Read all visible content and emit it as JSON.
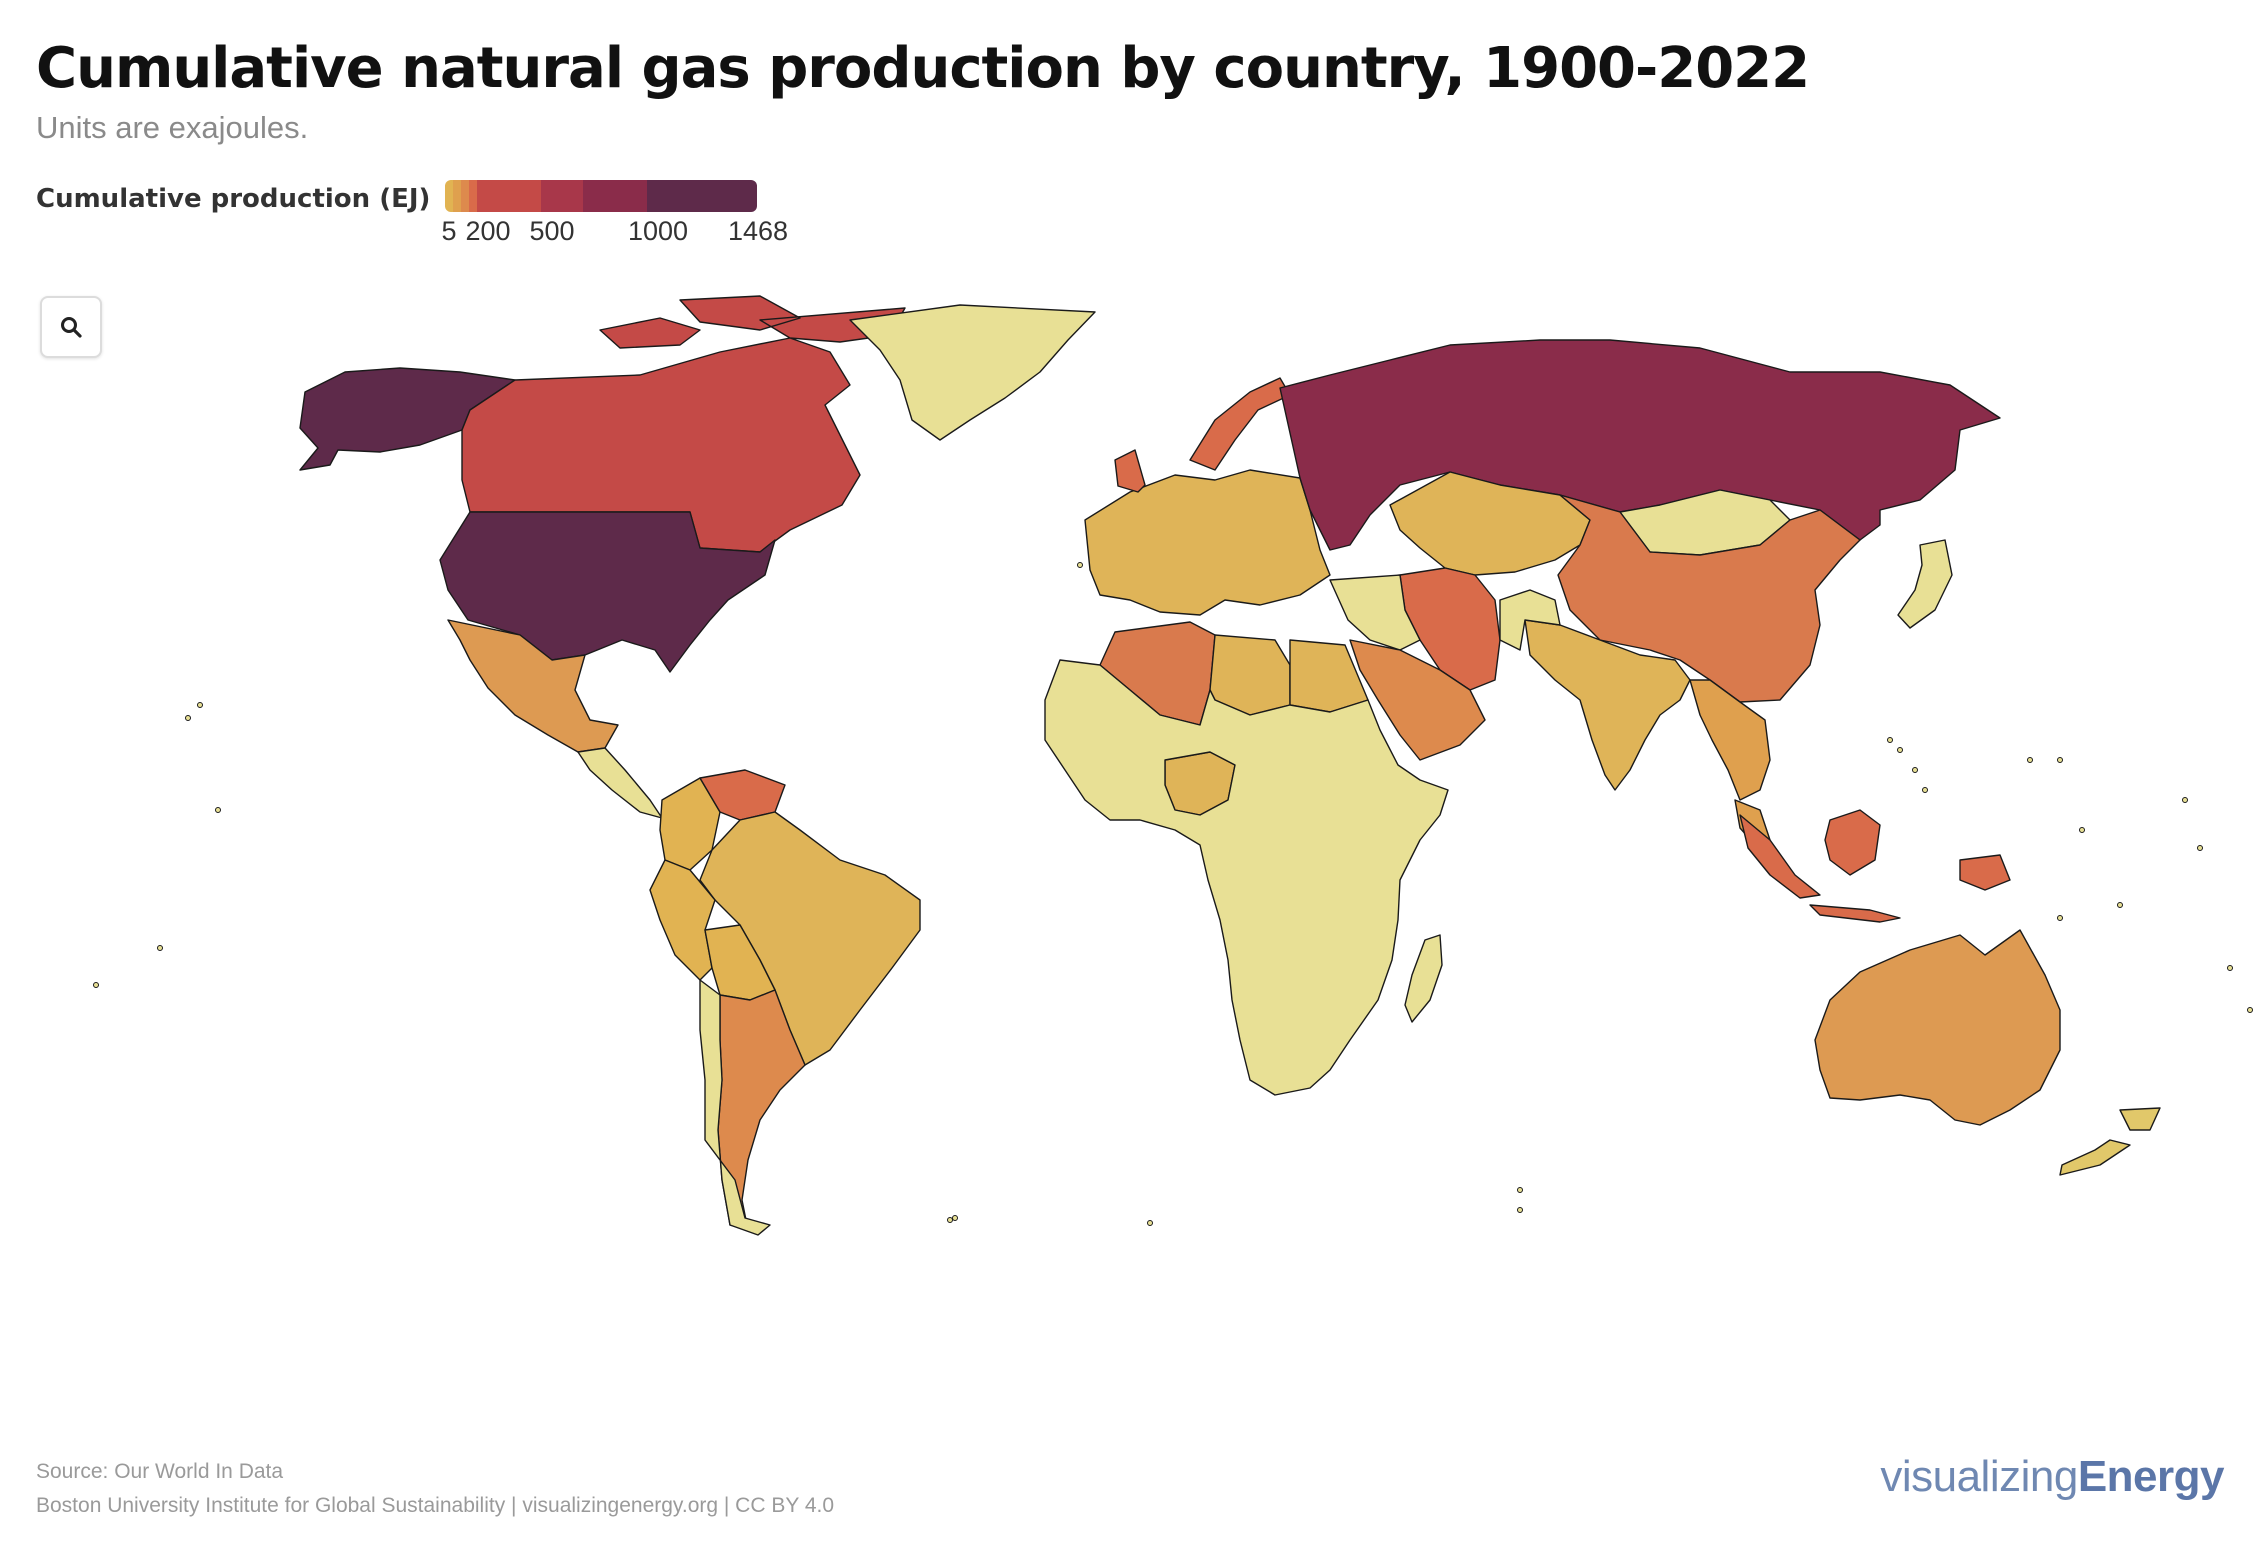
{
  "header": {
    "title": "Cumulative natural gas production by country, 1900-2022",
    "subtitle": "Units are exajoules."
  },
  "legend": {
    "title": "Cumulative production (EJ)",
    "ticks": [
      "5",
      "200",
      "500",
      "1000",
      "1468"
    ],
    "scale": [
      {
        "from": 0,
        "to": 5,
        "color": "#e1b352"
      },
      {
        "from": 5,
        "to": 50,
        "color": "#dfa04e"
      },
      {
        "from": 50,
        "to": 100,
        "color": "#dd8a4d"
      },
      {
        "from": 100,
        "to": 200,
        "color": "#d96b4a"
      },
      {
        "from": 200,
        "to": 500,
        "color": "#c44a47"
      },
      {
        "from": 500,
        "to": 700,
        "color": "#a8374a"
      },
      {
        "from": 700,
        "to": 1000,
        "color": "#8a2c4a"
      },
      {
        "from": 1000,
        "to": 1468,
        "color": "#5e2a4a"
      }
    ],
    "no_data_color": "#e8e095"
  },
  "controls": {
    "zoom_icon": "search-icon"
  },
  "map": {
    "countries": [
      {
        "name": "United States",
        "color": "#5e2a4a"
      },
      {
        "name": "Alaska",
        "color": "#5e2a4a"
      },
      {
        "name": "Canada",
        "color": "#c44a47"
      },
      {
        "name": "Greenland",
        "color": "#e8e095"
      },
      {
        "name": "Mexico",
        "color": "#dd9a52"
      },
      {
        "name": "Central America",
        "color": "#e8e095"
      },
      {
        "name": "Venezuela",
        "color": "#d96b4a"
      },
      {
        "name": "Colombia",
        "color": "#e1b352"
      },
      {
        "name": "Brazil",
        "color": "#dfb458"
      },
      {
        "name": "Peru",
        "color": "#e1b352"
      },
      {
        "name": "Bolivia",
        "color": "#e1b352"
      },
      {
        "name": "Argentina",
        "color": "#dd8a4d"
      },
      {
        "name": "Chile",
        "color": "#e8e095"
      },
      {
        "name": "Europe",
        "color": "#dfb458"
      },
      {
        "name": "United Kingdom",
        "color": "#d96b4a"
      },
      {
        "name": "Norway",
        "color": "#d96b4a"
      },
      {
        "name": "Russia",
        "color": "#8a2c4a"
      },
      {
        "name": "Central Asia",
        "color": "#dfb458"
      },
      {
        "name": "Iran",
        "color": "#d96b4a"
      },
      {
        "name": "Saudi Arabia",
        "color": "#dd8a4d"
      },
      {
        "name": "Middle East",
        "color": "#e8e095"
      },
      {
        "name": "China",
        "color": "#d97a4d"
      },
      {
        "name": "Mongolia",
        "color": "#e8e095"
      },
      {
        "name": "India",
        "color": "#dfb458"
      },
      {
        "name": "Southeast Asia",
        "color": "#dfa04e"
      },
      {
        "name": "Japan",
        "color": "#e8e095"
      },
      {
        "name": "Indonesia",
        "color": "#d96b4a"
      },
      {
        "name": "Australia",
        "color": "#dd9a52"
      },
      {
        "name": "New Zealand",
        "color": "#e1c86a"
      },
      {
        "name": "Algeria",
        "color": "#d97a4d"
      },
      {
        "name": "Libya",
        "color": "#dfb458"
      },
      {
        "name": "Egypt",
        "color": "#dfb458"
      },
      {
        "name": "Nigeria",
        "color": "#dfb458"
      },
      {
        "name": "Africa",
        "color": "#e8e095"
      },
      {
        "name": "Madagascar",
        "color": "#e8e095"
      }
    ]
  },
  "footer": {
    "source": "Source: Our World In Data",
    "credit": "Boston University Institute for Global Sustainability | visualizingenergy.org | CC BY 4.0",
    "logo_light": "visualizing",
    "logo_bold": "Energy"
  }
}
